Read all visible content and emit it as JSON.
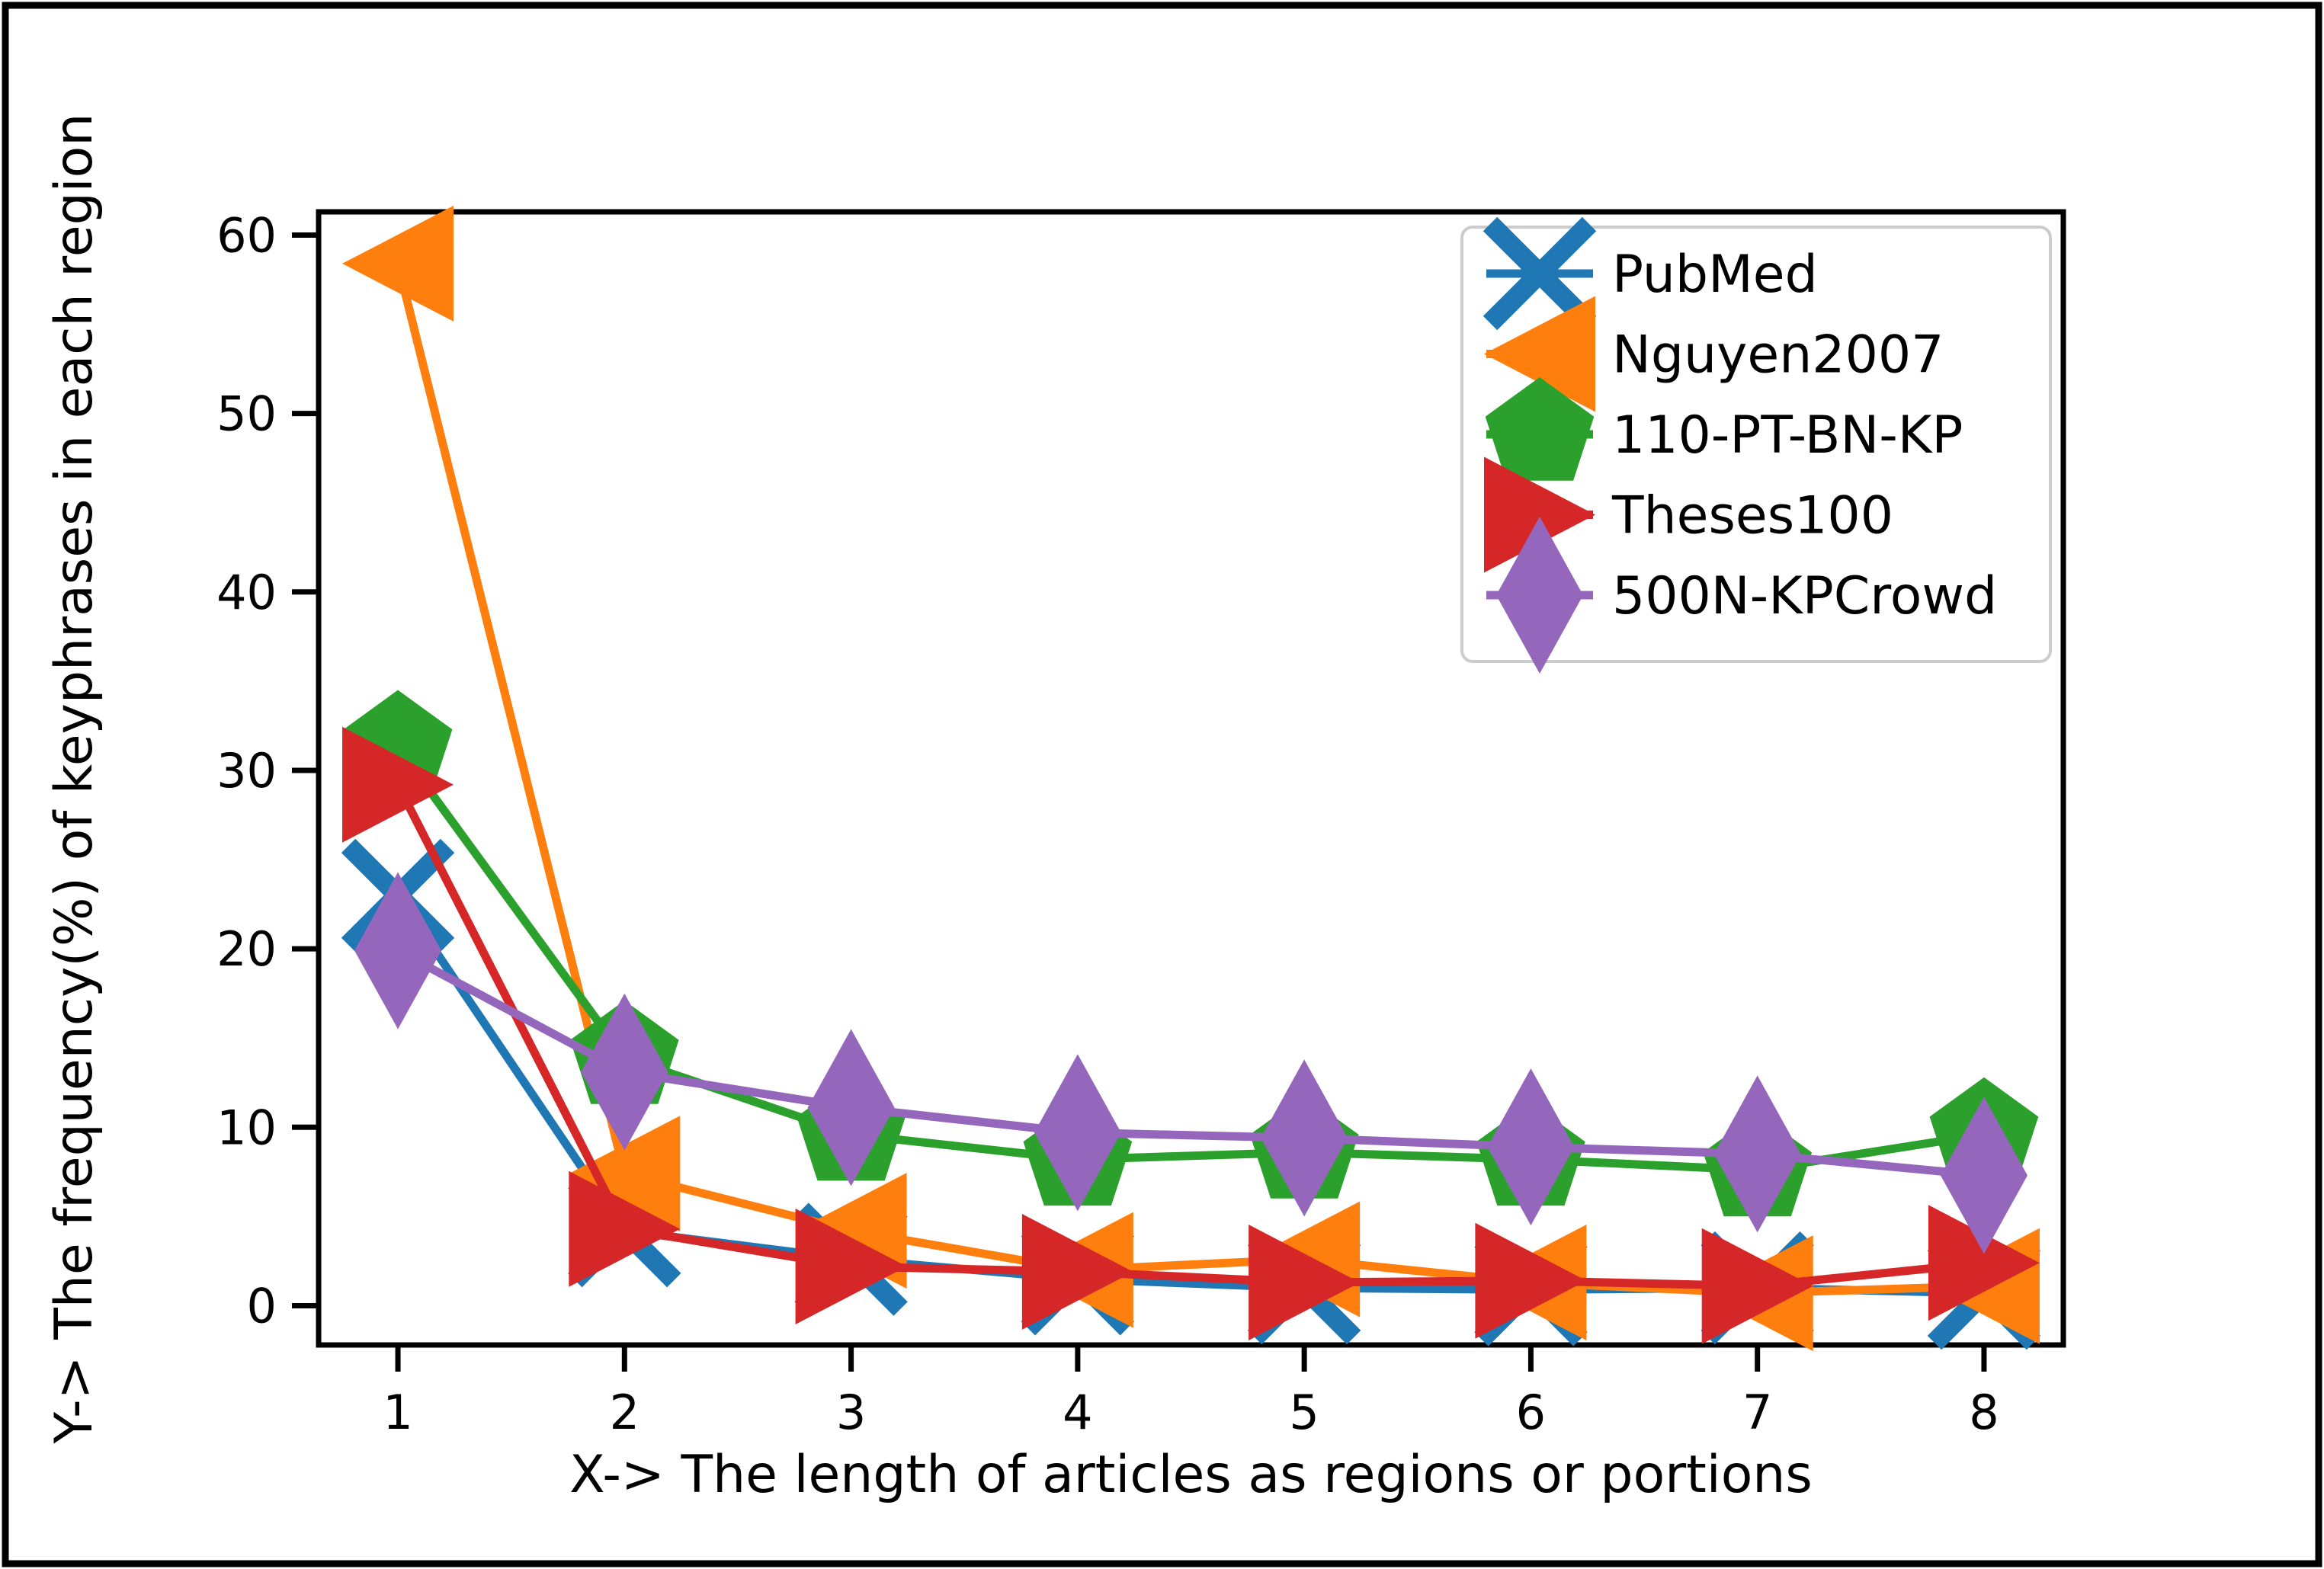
{
  "figure": {
    "background": "#ffffff",
    "border_color": "#000000",
    "axes_color": "#000000",
    "legend_border_color": "#cccccc"
  },
  "chart_data": {
    "type": "line",
    "title": "",
    "xlabel": "X-> The length of articles as regions or portions",
    "ylabel": "Y-> The frequency(%) of keyphrases in each region",
    "x": [
      1,
      2,
      3,
      4,
      5,
      6,
      7,
      8
    ],
    "x_tick_labels": [
      "1",
      "2",
      "3",
      "4",
      "5",
      "6",
      "7",
      "8"
    ],
    "y_ticks": [
      "0",
      "10",
      "20",
      "30",
      "40",
      "50",
      "60"
    ],
    "y_tick_values": [
      0,
      10,
      20,
      30,
      40,
      50,
      60
    ],
    "xlim": [
      0.65,
      8.35
    ],
    "ylim": [
      -2.2,
      61.3
    ],
    "grid": false,
    "legend_position": "upper right",
    "series": [
      {
        "name": "PubMed",
        "color": "#1f77b4",
        "marker": "x",
        "values": [
          23.0,
          4.2,
          2.6,
          1.5,
          1.0,
          0.9,
          1.0,
          0.7
        ]
      },
      {
        "name": "Nguyen2007",
        "color": "#ff7f0e",
        "marker": "triangle-left",
        "values": [
          58.4,
          7.4,
          4.2,
          2.0,
          2.6,
          1.3,
          0.7,
          1.1
        ]
      },
      {
        "name": "110-PT-BN-KP",
        "color": "#2ca02c",
        "marker": "pentagon",
        "values": [
          31.3,
          13.9,
          9.6,
          8.2,
          8.6,
          8.2,
          7.6,
          9.6
        ]
      },
      {
        "name": "Theses100",
        "color": "#d62728",
        "marker": "triangle-right",
        "values": [
          29.2,
          4.3,
          2.2,
          1.9,
          1.3,
          1.4,
          1.1,
          2.4
        ]
      },
      {
        "name": "500N-KPCrowd",
        "color": "#9467bd",
        "marker": "diamond-thin",
        "values": [
          19.9,
          13.1,
          11.1,
          9.7,
          9.4,
          8.9,
          8.5,
          7.3
        ]
      }
    ]
  }
}
